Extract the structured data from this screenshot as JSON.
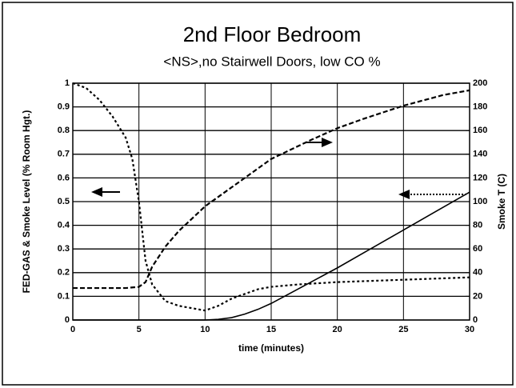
{
  "chart_data": {
    "type": "line",
    "title": "2nd Floor Bedroom",
    "subtitle": "<NS>,no Stairwell Doors, low CO %",
    "xlabel": "time (minutes)",
    "ylabel": "FED-GAS & Smoke Level (% Room Hgt.)",
    "y2label": "Smoke T (C)",
    "xlim": [
      0,
      30
    ],
    "xticks": [
      0,
      5,
      10,
      15,
      20,
      25,
      30
    ],
    "ylim": [
      0,
      1
    ],
    "yticks": [
      0,
      0.1,
      0.2,
      0.3,
      0.4,
      0.5,
      0.6,
      0.7,
      0.8,
      0.9,
      1
    ],
    "y2lim": [
      0,
      200
    ],
    "y2ticks": [
      0,
      20,
      40,
      60,
      80,
      100,
      120,
      140,
      160,
      180,
      200
    ],
    "grid": true,
    "series": [
      {
        "color": "#000000",
        "style": "dotted",
        "x": [
          0,
          1,
          2,
          3,
          4,
          4.5,
          5,
          5.5,
          6,
          7,
          8,
          9,
          10,
          11,
          12,
          13,
          14,
          15,
          17,
          20,
          25,
          30
        ],
        "values": [
          1,
          0.98,
          0.93,
          0.86,
          0.77,
          0.68,
          0.5,
          0.25,
          0.15,
          0.08,
          0.06,
          0.05,
          0.04,
          0.06,
          0.09,
          0.11,
          0.13,
          0.14,
          0.15,
          0.16,
          0.17,
          0.18
        ]
      },
      {
        "color": "#000000",
        "style": "dashed",
        "axis": "y2",
        "x": [
          0,
          2,
          4,
          5,
          5.5,
          6,
          7,
          8,
          10,
          12,
          15,
          18,
          20,
          22,
          25,
          28,
          30
        ],
        "values": [
          27,
          27,
          27,
          28,
          32,
          45,
          62,
          75,
          96,
          112,
          136,
          152,
          162,
          170,
          181,
          190,
          194
        ]
      },
      {
        "color": "#000000",
        "style": "solid",
        "x": [
          0,
          10,
          11,
          12,
          13,
          14,
          15,
          17,
          20,
          22.5,
          25,
          27.5,
          30
        ],
        "values": [
          0,
          0,
          0.003,
          0.01,
          0.025,
          0.045,
          0.07,
          0.13,
          0.22,
          0.3,
          0.38,
          0.46,
          0.54
        ]
      }
    ]
  }
}
